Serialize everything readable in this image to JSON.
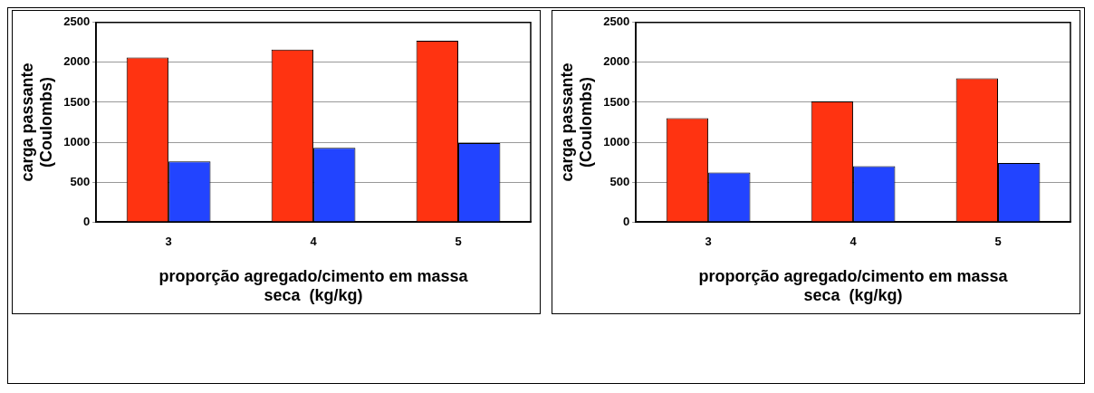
{
  "chart_data": [
    {
      "type": "bar",
      "categories": [
        "3",
        "4",
        "5"
      ],
      "xlabel": "proporção agregado/cimento em massa\nseca  (kg/kg)",
      "ylabel": "carga passante\n(Coulombs)",
      "ylim": [
        0,
        2500
      ],
      "yticks": [
        0,
        500,
        1000,
        1500,
        2000,
        2500
      ],
      "grid": "y",
      "legend": false,
      "series": [
        {
          "color": "#ff3311",
          "values": [
            2060,
            2160,
            2270
          ]
        },
        {
          "color": "#2244ff",
          "values": [
            760,
            930,
            990
          ]
        }
      ]
    },
    {
      "type": "bar",
      "categories": [
        "3",
        "4",
        "5"
      ],
      "xlabel": "proporção agregado/cimento em massa\nseca  (kg/kg)",
      "ylabel": "carga passante\n(Coulombs)",
      "ylim": [
        0,
        2500
      ],
      "yticks": [
        0,
        500,
        1000,
        1500,
        2000,
        2500
      ],
      "grid": "y",
      "legend": false,
      "series": [
        {
          "color": "#ff3311",
          "values": [
            1300,
            1510,
            1800
          ]
        },
        {
          "color": "#2244ff",
          "values": [
            620,
            700,
            740
          ]
        }
      ]
    }
  ]
}
